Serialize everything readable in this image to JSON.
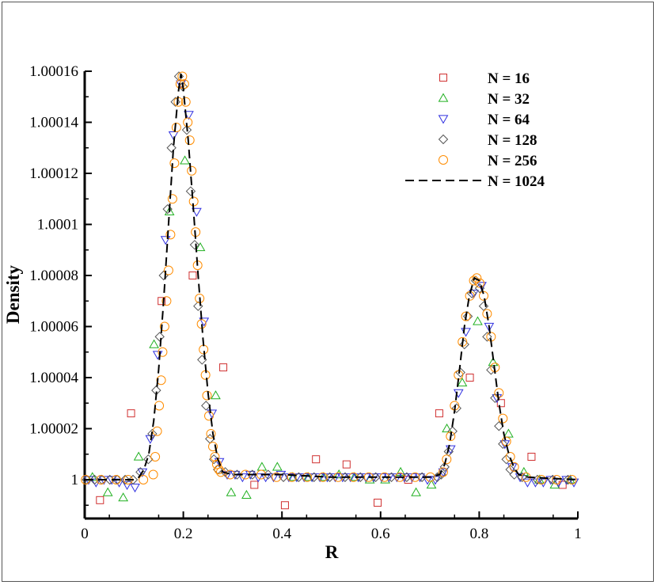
{
  "chart_data": {
    "type": "scatter",
    "title": "",
    "xlabel": "R",
    "ylabel": "Density",
    "xlim": [
      0,
      1
    ],
    "ylim": [
      0.99998,
      1.00016
    ],
    "x_ticks": [
      0,
      0.2,
      0.4,
      0.6,
      0.8,
      1
    ],
    "x_tick_labels": [
      "0",
      "0.2",
      "0.4",
      "0.6",
      "0.8",
      "1"
    ],
    "y_ticks": [
      1.0,
      1.00002,
      1.00004,
      1.00006,
      1.00008,
      1.0001,
      1.00012,
      1.00014,
      1.00016
    ],
    "y_tick_labels": [
      "1",
      "1.00002",
      "1.00004",
      "1.00006",
      "1.00008",
      "1.0001",
      "1.00012",
      "1.00014",
      "1.00016"
    ],
    "legend_position": "top-right",
    "grid": false,
    "series": [
      {
        "name": "N = 16",
        "marker": "square",
        "color": "#d03030",
        "x": [
          0.031,
          0.094,
          0.156,
          0.219,
          0.281,
          0.344,
          0.406,
          0.469,
          0.531,
          0.594,
          0.656,
          0.719,
          0.781,
          0.844,
          0.906,
          0.969
        ],
        "y": [
          0.999992,
          1.000026,
          1.00007,
          1.00008,
          1.000044,
          0.999998,
          0.99999,
          1.000008,
          1.000006,
          0.999991,
          1.0,
          1.000026,
          1.00004,
          1.00003,
          1.000009,
          0.999998
        ]
      },
      {
        "name": "N = 32",
        "marker": "triangle-up",
        "color": "#20b020",
        "x": [
          0.0156,
          0.0469,
          0.0781,
          0.1094,
          0.1406,
          0.1719,
          0.2031,
          0.2344,
          0.2656,
          0.2969,
          0.3281,
          0.3594,
          0.3906,
          0.4219,
          0.4531,
          0.4844,
          0.5156,
          0.5469,
          0.5781,
          0.6094,
          0.6406,
          0.6719,
          0.7031,
          0.7344,
          0.7656,
          0.7969,
          0.8281,
          0.8594,
          0.8906,
          0.9219,
          0.9531,
          0.9844
        ],
        "y": [
          1.000001,
          0.999995,
          0.999993,
          1.000009,
          1.000053,
          1.000105,
          1.000125,
          1.000091,
          1.000033,
          0.999995,
          0.999994,
          1.000005,
          1.000005,
          1.000001,
          1.000001,
          1.000001,
          1.000002,
          1.000001,
          1.0,
          1.0,
          1.000003,
          0.999995,
          0.999998,
          1.00002,
          1.000038,
          1.000062,
          1.000046,
          1.000018,
          1.000003,
          1.0,
          0.999998,
          1.0
        ]
      },
      {
        "name": "N = 64",
        "marker": "triangle-down",
        "color": "#3030e0",
        "x": [
          0.008,
          0.023,
          0.039,
          0.055,
          0.07,
          0.086,
          0.102,
          0.117,
          0.133,
          0.148,
          0.164,
          0.18,
          0.195,
          0.211,
          0.227,
          0.242,
          0.258,
          0.273,
          0.289,
          0.305,
          0.32,
          0.336,
          0.352,
          0.367,
          0.383,
          0.398,
          0.414,
          0.43,
          0.445,
          0.461,
          0.477,
          0.492,
          0.508,
          0.523,
          0.539,
          0.555,
          0.57,
          0.586,
          0.602,
          0.617,
          0.633,
          0.648,
          0.664,
          0.68,
          0.695,
          0.711,
          0.727,
          0.742,
          0.758,
          0.773,
          0.789,
          0.805,
          0.82,
          0.836,
          0.852,
          0.867,
          0.883,
          0.898,
          0.914,
          0.93,
          0.945,
          0.961,
          0.977,
          0.992
        ],
        "y": [
          1.0,
          0.999999,
          1.0,
          1.0,
          0.999999,
          0.999998,
          0.999997,
          1.000003,
          1.000016,
          1.000049,
          1.000094,
          1.000135,
          1.000155,
          1.000143,
          1.000105,
          1.000062,
          1.000026,
          1.000007,
          1.000002,
          1.000002,
          1.000001,
          1.000002,
          1.000001,
          1.000001,
          1.000001,
          1.000002,
          1.000001,
          1.000001,
          1.000001,
          1.000001,
          1.000001,
          1.000001,
          1.000001,
          1.000001,
          1.000001,
          1.000001,
          1.000001,
          1.000001,
          1.000001,
          1.000001,
          1.000001,
          1.000001,
          1.000001,
          1.000001,
          1.0,
          1.0,
          1.000003,
          1.000012,
          1.000034,
          1.000058,
          1.000073,
          1.000076,
          1.00006,
          1.000032,
          1.000014,
          1.000005,
          1.000001,
          0.999999,
          0.999999,
          0.999999,
          1.0,
          0.999999,
          1.0,
          0.999999
        ]
      },
      {
        "name": "N = 128",
        "marker": "diamond",
        "color": "#555555",
        "x": [
          0.004,
          0.02,
          0.035,
          0.051,
          0.066,
          0.082,
          0.098,
          0.113,
          0.129,
          0.137,
          0.145,
          0.152,
          0.16,
          0.168,
          0.176,
          0.184,
          0.191,
          0.199,
          0.207,
          0.215,
          0.223,
          0.23,
          0.238,
          0.246,
          0.254,
          0.262,
          0.27,
          0.285,
          0.309,
          0.34,
          0.372,
          0.403,
          0.434,
          0.465,
          0.497,
          0.528,
          0.559,
          0.59,
          0.622,
          0.653,
          0.684,
          0.715,
          0.723,
          0.73,
          0.738,
          0.746,
          0.754,
          0.762,
          0.77,
          0.777,
          0.785,
          0.793,
          0.801,
          0.809,
          0.816,
          0.824,
          0.832,
          0.84,
          0.848,
          0.855,
          0.863,
          0.871,
          0.887,
          0.918,
          0.949,
          0.98
        ],
        "y": [
          1.0,
          1.0,
          1.0,
          1.0,
          1.0,
          1.0,
          1.0,
          1.000003,
          1.000008,
          1.000018,
          1.000035,
          1.000056,
          1.00008,
          1.000106,
          1.00013,
          1.000148,
          1.000158,
          1.000154,
          1.000137,
          1.000113,
          1.000092,
          1.000068,
          1.000047,
          1.000029,
          1.000016,
          1.000008,
          1.000004,
          1.000003,
          1.000002,
          1.000002,
          1.000002,
          1.000001,
          1.000001,
          1.000001,
          1.000001,
          1.000001,
          1.000001,
          1.000001,
          1.000001,
          1.000001,
          1.000001,
          1.000001,
          1.000002,
          1.000005,
          1.000011,
          1.000019,
          1.000028,
          1.000042,
          1.000053,
          1.000064,
          1.000073,
          1.000078,
          1.000075,
          1.000068,
          1.000056,
          1.000043,
          1.000032,
          1.000021,
          1.000014,
          1.000008,
          1.000004,
          1.000002,
          1.000001,
          1.0,
          1.0,
          1.0
        ]
      },
      {
        "name": "N = 256",
        "marker": "circle",
        "color": "#ff8c00",
        "x": [
          0.002,
          0.033,
          0.064,
          0.088,
          0.119,
          0.139,
          0.143,
          0.147,
          0.151,
          0.155,
          0.158,
          0.162,
          0.166,
          0.17,
          0.174,
          0.178,
          0.182,
          0.186,
          0.19,
          0.194,
          0.198,
          0.202,
          0.205,
          0.209,
          0.213,
          0.217,
          0.221,
          0.225,
          0.229,
          0.233,
          0.237,
          0.241,
          0.245,
          0.248,
          0.252,
          0.256,
          0.26,
          0.264,
          0.268,
          0.272,
          0.276,
          0.295,
          0.326,
          0.358,
          0.389,
          0.42,
          0.451,
          0.483,
          0.514,
          0.545,
          0.576,
          0.608,
          0.639,
          0.67,
          0.701,
          0.727,
          0.734,
          0.742,
          0.75,
          0.758,
          0.766,
          0.773,
          0.781,
          0.789,
          0.795,
          0.801,
          0.809,
          0.816,
          0.824,
          0.832,
          0.84,
          0.848,
          0.855,
          0.863,
          0.871,
          0.895,
          0.926,
          0.957,
          0.988
        ],
        "y": [
          1.0,
          1.0,
          1.0,
          1.0,
          1.0,
          1.000002,
          1.000009,
          1.000019,
          1.000029,
          1.000039,
          1.00005,
          1.00006,
          1.00007,
          1.000082,
          1.000096,
          1.00011,
          1.000124,
          1.000138,
          1.000148,
          1.000155,
          1.000158,
          1.000155,
          1.000148,
          1.00014,
          1.000133,
          1.000121,
          1.000109,
          1.000097,
          1.000084,
          1.000071,
          1.000061,
          1.000051,
          1.000041,
          1.000033,
          1.000025,
          1.000018,
          1.000013,
          1.000009,
          1.000006,
          1.000004,
          1.000003,
          1.000002,
          1.000002,
          1.000002,
          1.000001,
          1.000001,
          1.000001,
          1.000001,
          1.000001,
          1.000001,
          1.000001,
          1.000001,
          1.000001,
          1.000001,
          1.000001,
          1.000003,
          1.000008,
          1.000017,
          1.000029,
          1.000041,
          1.000054,
          1.000064,
          1.000072,
          1.000078,
          1.000079,
          1.000077,
          1.000072,
          1.000065,
          1.000056,
          1.000044,
          1.000034,
          1.000024,
          1.000015,
          1.000009,
          1.000005,
          1.000001,
          1.0,
          1.0,
          1.0
        ]
      },
      {
        "name": "N = 1024",
        "marker": "dashed-line",
        "color": "#000000",
        "x": [
          0.0,
          0.05,
          0.1,
          0.11,
          0.12,
          0.13,
          0.14,
          0.15,
          0.16,
          0.17,
          0.18,
          0.19,
          0.195,
          0.2,
          0.21,
          0.22,
          0.23,
          0.24,
          0.25,
          0.26,
          0.27,
          0.28,
          0.3,
          0.4,
          0.5,
          0.6,
          0.7,
          0.72,
          0.73,
          0.74,
          0.75,
          0.76,
          0.77,
          0.78,
          0.79,
          0.8,
          0.81,
          0.82,
          0.83,
          0.84,
          0.85,
          0.86,
          0.87,
          0.88,
          0.9,
          1.0
        ],
        "y": [
          1.0,
          1.0,
          1.0,
          1.000001,
          1.000004,
          1.00001,
          1.000023,
          1.000043,
          1.00007,
          1.0001,
          1.00013,
          1.000152,
          1.000159,
          1.000153,
          1.000133,
          1.000107,
          1.00008,
          1.000055,
          1.000034,
          1.000018,
          1.000008,
          1.000003,
          1.000002,
          1.000002,
          1.000001,
          1.000001,
          1.000001,
          1.000002,
          1.000006,
          1.000014,
          1.000027,
          1.000043,
          1.00006,
          1.000072,
          1.000079,
          1.000078,
          1.000072,
          1.00006,
          1.000045,
          1.00003,
          1.000018,
          1.00001,
          1.000005,
          1.000002,
          1.000001,
          1.0
        ]
      }
    ]
  }
}
